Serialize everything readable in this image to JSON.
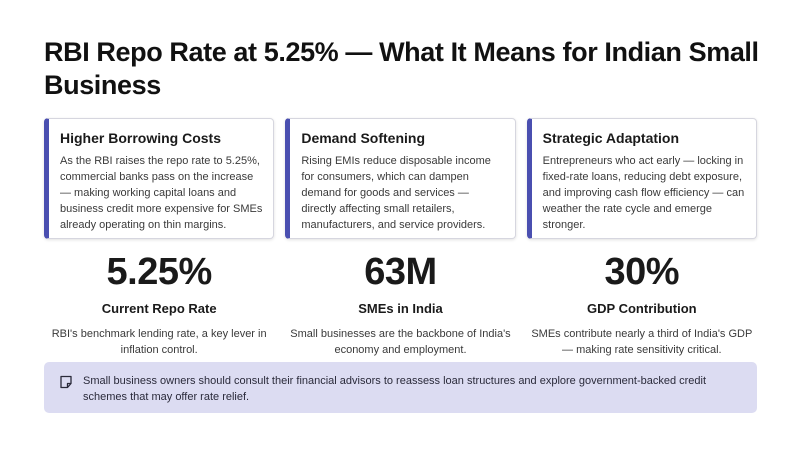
{
  "title": "RBI Repo Rate at 5.25% — What It Means for Indian Small Business",
  "cards": [
    {
      "title": "Higher Borrowing Costs",
      "body": "As the RBI raises the repo rate to 5.25%, commercial banks pass on the increase — making working capital loans and business credit more expensive for SMEs already operating on thin margins."
    },
    {
      "title": "Demand Softening",
      "body": "Rising EMIs reduce disposable income for consumers, which can dampen demand for goods and services — directly affecting small retailers, manufacturers, and service providers."
    },
    {
      "title": "Strategic Adaptation",
      "body": "Entrepreneurs who act early — locking in fixed-rate loans, reducing debt exposure, and improving cash flow efficiency — can weather the rate cycle and emerge stronger."
    }
  ],
  "stats": [
    {
      "value": "5.25%",
      "label": "Current Repo Rate",
      "desc": "RBI's benchmark lending rate, a key lever in inflation control."
    },
    {
      "value": "63M",
      "label": "SMEs in India",
      "desc": "Small businesses are the backbone of India's economy and employment."
    },
    {
      "value": "30%",
      "label": "GDP Contribution",
      "desc": "SMEs contribute nearly a third of India's GDP — making rate sensitivity critical."
    }
  ],
  "note": {
    "icon": "note-icon",
    "text": "Small business owners should consult their financial advisors to reassess loan structures and explore government-backed credit schemes that may offer rate relief."
  },
  "colors": {
    "accent": "#4a4fb0",
    "note_background": "#dcdcf2"
  }
}
